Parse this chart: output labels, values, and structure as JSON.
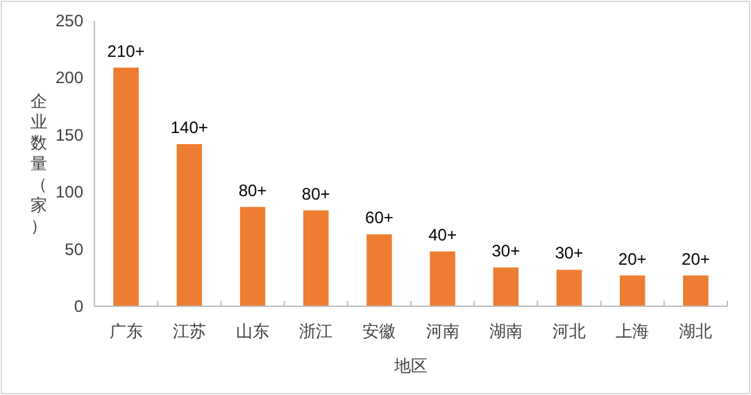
{
  "chart_data": {
    "type": "bar",
    "xlabel": "地区",
    "ylabel": "企业数量（家）",
    "categories": [
      "广东",
      "江苏",
      "山东",
      "浙江",
      "安徽",
      "河南",
      "湖南",
      "河北",
      "上海",
      "湖北"
    ],
    "values": [
      209,
      142,
      87,
      84,
      63,
      48,
      34,
      32,
      27,
      27
    ],
    "value_labels": [
      "210+",
      "140+",
      "80+",
      "80+",
      "60+",
      "40+",
      "30+",
      "30+",
      "20+",
      "20+"
    ],
    "color": "#ed7d31",
    "ylim": [
      0,
      250
    ],
    "yticks": [
      0,
      50,
      100,
      150,
      200,
      250
    ],
    "grid": false
  }
}
